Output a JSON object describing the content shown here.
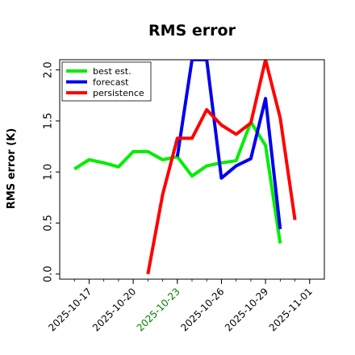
{
  "chart_data": {
    "type": "line",
    "title": "RMS error",
    "xlabel": "",
    "ylabel": "RMS error (K)",
    "x": [
      "2025-10-16",
      "2025-10-17",
      "2025-10-18",
      "2025-10-19",
      "2025-10-20",
      "2025-10-21",
      "2025-10-22",
      "2025-10-23",
      "2025-10-24",
      "2025-10-25",
      "2025-10-26",
      "2025-10-27",
      "2025-10-28",
      "2025-10-29",
      "2025-10-30",
      "2025-10-31"
    ],
    "xlim": [
      "2025-10-15",
      "2025-11-02"
    ],
    "ylim": [
      -0.05,
      2.1
    ],
    "yticks": [
      0.0,
      0.5,
      1.0,
      1.5,
      2.0
    ],
    "ytick_labels": [
      "0.0",
      "0.5",
      "1.0",
      "1.5",
      "2.0"
    ],
    "xticks": [
      "2025-10-17",
      "2025-10-20",
      "2025-10-23",
      "2025-10-26",
      "2025-10-29",
      "2025-11-01"
    ],
    "xtick_labels": [
      "2025-10-17",
      "2025-10-20",
      "2025-10-23",
      "2025-10-26",
      "2025-10-29",
      "2025-11-01"
    ],
    "xtick_colors": [
      "#000000",
      "#000000",
      "#008000",
      "#000000",
      "#000000",
      "#000000"
    ],
    "grid": false,
    "legend_position": "top-left",
    "series": [
      {
        "name": "best est.",
        "color": "#00ee00",
        "values": [
          1.03,
          1.12,
          1.09,
          1.05,
          1.2,
          1.2,
          1.12,
          1.15,
          0.96,
          1.06,
          1.09,
          1.11,
          1.49,
          1.26,
          0.3,
          null
        ]
      },
      {
        "name": "forecast",
        "color": "#0000ee",
        "values": [
          null,
          null,
          null,
          null,
          null,
          null,
          null,
          1.15,
          2.1,
          2.1,
          0.94,
          1.06,
          1.13,
          1.72,
          0.44,
          null
        ]
      },
      {
        "name": "persistence",
        "color": "#ff0000",
        "values": [
          null,
          null,
          null,
          null,
          null,
          0.0,
          0.78,
          1.33,
          1.33,
          1.61,
          1.46,
          1.37,
          1.48,
          2.1,
          1.53,
          0.53
        ]
      }
    ]
  }
}
